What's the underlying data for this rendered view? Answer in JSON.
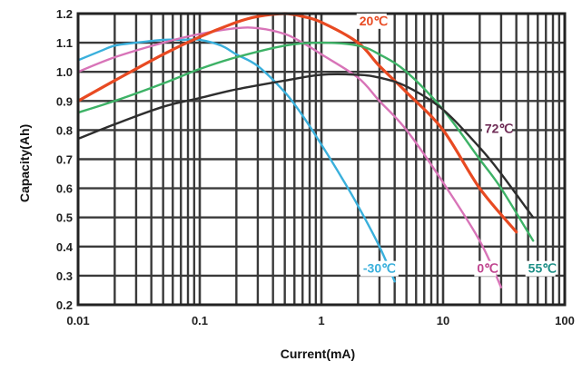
{
  "chart_data": {
    "type": "line",
    "xlabel": "Current(mA)",
    "ylabel": "Capacity(Ah)",
    "x_scale": "log",
    "xlim": [
      0.01,
      100
    ],
    "ylim": [
      0.2,
      1.2
    ],
    "grid": true,
    "x_ticks": [
      "0.01",
      "0.1",
      "1",
      "10",
      "100"
    ],
    "y_ticks": [
      "0.2",
      "0.3",
      "0.4",
      "0.5",
      "0.6",
      "0.7",
      "0.8",
      "0.9",
      "1.0",
      "1.1",
      "1.2"
    ],
    "series": [
      {
        "name": "-30℃",
        "color": "#3ab0dc",
        "x": [
          0.01,
          0.015,
          0.02,
          0.03,
          0.05,
          0.07,
          0.1,
          0.15,
          0.2,
          0.3,
          0.5,
          0.7,
          1,
          1.5,
          2,
          3,
          4
        ],
        "y": [
          1.04,
          1.07,
          1.09,
          1.1,
          1.11,
          1.11,
          1.11,
          1.09,
          1.06,
          1.02,
          0.93,
          0.85,
          0.75,
          0.63,
          0.54,
          0.4,
          0.28
        ]
      },
      {
        "name": "0℃",
        "color": "#d874b8",
        "x": [
          0.01,
          0.02,
          0.05,
          0.1,
          0.2,
          0.3,
          0.5,
          0.7,
          1,
          2,
          3,
          5,
          10,
          20,
          30
        ],
        "y": [
          1.0,
          1.05,
          1.1,
          1.13,
          1.15,
          1.15,
          1.13,
          1.1,
          1.06,
          0.98,
          0.9,
          0.8,
          0.62,
          0.42,
          0.26
        ]
      },
      {
        "name": "20℃",
        "color": "#e84a22",
        "x": [
          0.01,
          0.02,
          0.05,
          0.1,
          0.2,
          0.3,
          0.5,
          0.7,
          1,
          2,
          3,
          5,
          10,
          20,
          40
        ],
        "y": [
          0.9,
          0.97,
          1.06,
          1.12,
          1.17,
          1.19,
          1.2,
          1.19,
          1.17,
          1.1,
          1.02,
          0.93,
          0.8,
          0.6,
          0.45
        ]
      },
      {
        "name": "55℃",
        "color": "#3db266",
        "x": [
          0.01,
          0.02,
          0.05,
          0.1,
          0.2,
          0.5,
          1,
          2,
          3,
          5,
          10,
          20,
          30,
          55
        ],
        "y": [
          0.86,
          0.9,
          0.96,
          1.01,
          1.05,
          1.09,
          1.1,
          1.09,
          1.06,
          1.0,
          0.87,
          0.7,
          0.6,
          0.42
        ]
      },
      {
        "name": "72℃",
        "color": "#2e2e2e",
        "x": [
          0.01,
          0.02,
          0.05,
          0.1,
          0.2,
          0.5,
          1,
          2,
          3,
          5,
          10,
          20,
          30,
          55
        ],
        "y": [
          0.77,
          0.82,
          0.88,
          0.91,
          0.94,
          0.97,
          0.99,
          0.99,
          0.98,
          0.95,
          0.87,
          0.74,
          0.65,
          0.5
        ]
      }
    ],
    "series_labels": [
      {
        "text": "-30℃",
        "color": "#3ab0dc",
        "x": 2.2,
        "y": 0.31
      },
      {
        "text": "0℃",
        "color": "#c0458f",
        "x": 19,
        "y": 0.31
      },
      {
        "text": "20℃",
        "color": "#e84a22",
        "x": 2.05,
        "y": 1.16
      },
      {
        "text": "55℃",
        "color": "#1e8f86",
        "x": 50,
        "y": 0.31
      },
      {
        "text": "72℃",
        "color": "#6e2b55",
        "x": 22,
        "y": 0.79
      }
    ]
  }
}
